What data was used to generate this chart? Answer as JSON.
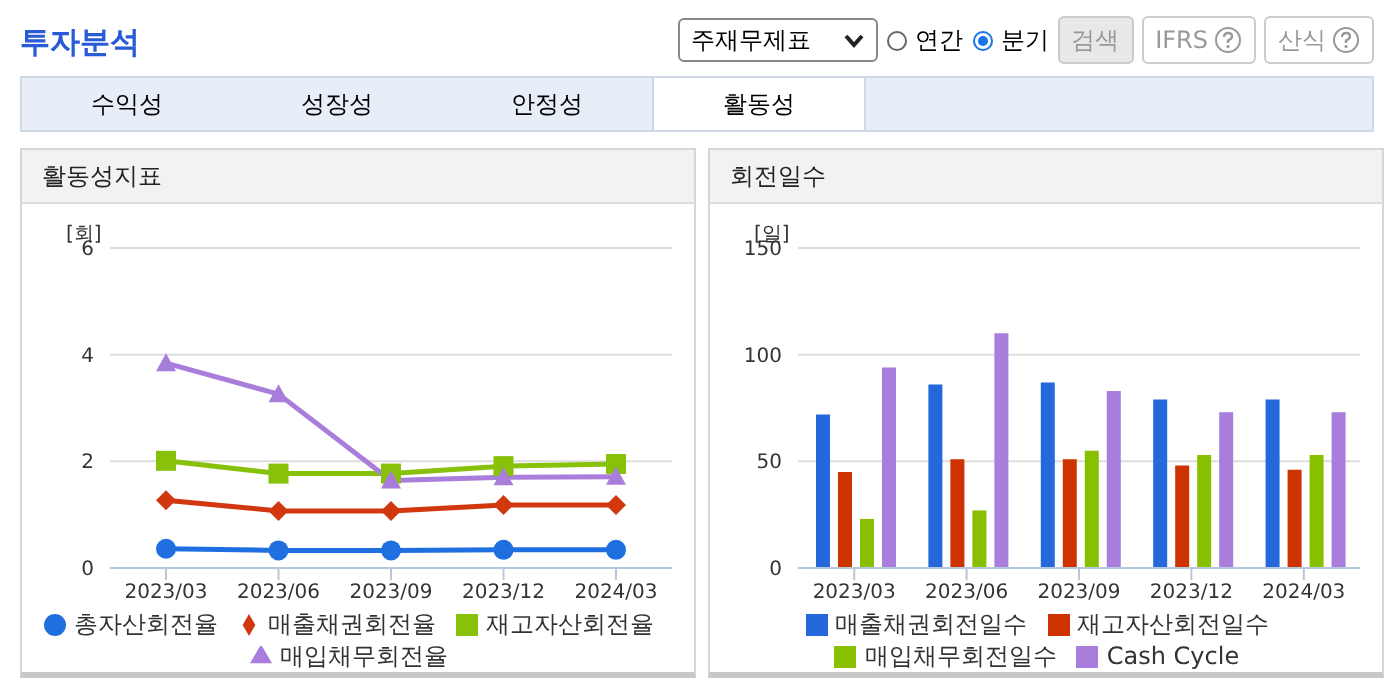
{
  "chart_data": [
    {
      "type": "line",
      "title": "활동성지표",
      "ylabel": "[회]",
      "categories": [
        "2023/03",
        "2023/06",
        "2023/09",
        "2023/12",
        "2024/03"
      ],
      "series": [
        {
          "name": "총자산회전율",
          "color": "#1f6fe0",
          "marker": "circle",
          "values": [
            0.36,
            0.33,
            0.33,
            0.34,
            0.34
          ]
        },
        {
          "name": "매출채권회전율",
          "color": "#d2380f",
          "marker": "diamond",
          "values": [
            1.27,
            1.07,
            1.07,
            1.18,
            1.18
          ]
        },
        {
          "name": "재고자산회전율",
          "color": "#88c10a",
          "marker": "square",
          "values": [
            2.01,
            1.77,
            1.77,
            1.91,
            1.95
          ]
        },
        {
          "name": "매입채무회전율",
          "color": "#a97ddb",
          "marker": "triangle",
          "values": [
            3.84,
            3.26,
            1.64,
            1.7,
            1.71
          ]
        }
      ],
      "ylim": [
        0,
        6
      ],
      "yticks": [
        0,
        2,
        4,
        6
      ],
      "grid": "y",
      "legend": "bottom",
      "annotations": [
        "투자분석",
        "주재무제표",
        "연간",
        "분기",
        "검색",
        "IFRS",
        "산식",
        "수익성",
        "성장성",
        "안정성",
        "활동성"
      ]
    },
    {
      "type": "bar",
      "title": "회전일수",
      "ylabel": "[일]",
      "categories": [
        "2023/03",
        "2023/06",
        "2023/09",
        "2023/12",
        "2024/03"
      ],
      "series": [
        {
          "name": "매출채권회전일수",
          "color": "#2468dc",
          "values": [
            72,
            86,
            87,
            79,
            79
          ]
        },
        {
          "name": "재고자산회전일수",
          "color": "#cc3300",
          "values": [
            45,
            51,
            51,
            48,
            46
          ]
        },
        {
          "name": "매입채무회전일수",
          "color": "#88c000",
          "values": [
            23,
            27,
            55,
            53,
            53
          ]
        },
        {
          "name": "Cash Cycle",
          "color": "#a97ddb",
          "values": [
            94,
            110,
            83,
            73,
            73
          ]
        }
      ],
      "ylim": [
        0,
        150
      ],
      "yticks": [
        0,
        50,
        100,
        150
      ],
      "grid": "y",
      "legend": "bottom"
    }
  ]
}
